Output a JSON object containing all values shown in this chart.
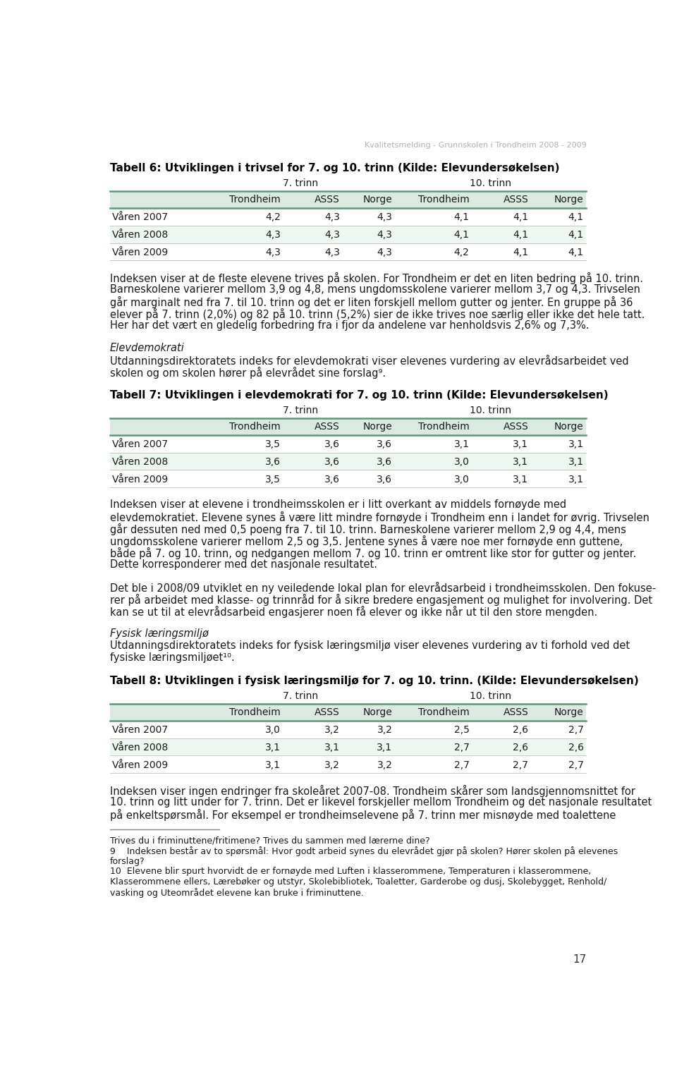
{
  "header": "Kvalitetsmelding - Grunnskolen i Trondheim 2008 - 2009",
  "page_number": "17",
  "bg_color": "#ffffff",
  "table_header_bg": "#daeae3",
  "table_alt_bg": "#eef6f2",
  "table_border_color": "#5a9a78",
  "text_color": "#1a1a1a",
  "tabell6_title": "Tabell 6: Utviklingen i trivsel for 7. og 10. trinn (Kilde: Elevundersøkelsen)",
  "tabell6_rows": [
    [
      "Våren 2007",
      "4,2",
      "4,3",
      "4,3",
      "4,1",
      "4,1",
      "4,1"
    ],
    [
      "Våren 2008",
      "4,3",
      "4,3",
      "4,3",
      "4,1",
      "4,1",
      "4,1"
    ],
    [
      "Våren 2009",
      "4,3",
      "4,3",
      "4,3",
      "4,2",
      "4,1",
      "4,1"
    ]
  ],
  "text1_lines": [
    "Indeksen viser at de fleste elevene trives på skolen. For Trondheim er det en liten bedring på 10. trinn.",
    "Barneskolene varierer mellom 3,9 og 4,8, mens ungdomsskolene varierer mellom 3,7 og 4,3. Trivselen",
    "går marginalt ned fra 7. til 10. trinn og det er liten forskjell mellom gutter og jenter. En gruppe på 36",
    "elever på 7. trinn (2,0%) og 82 på 10. trinn (5,2%) sier de ikke trives noe særlig eller ikke det hele tatt.",
    "Her har det vært en gledelig forbedring fra i fjor da andelene var henholdsvis 2,6% og 7,3%."
  ],
  "section2_title": "Elevdemokrati",
  "text2_lines": [
    "Utdanningsdirektoratets indeks for elevdemokrati viser elevenes vurdering av elevrådsarbeidet ved",
    "skolen og om skolen hører på elevrådet sine forslag⁹."
  ],
  "tabell7_title": "Tabell 7: Utviklingen i elevdemokrati for 7. og 10. trinn (Kilde: Elevundersøkelsen)",
  "tabell7_rows": [
    [
      "Våren 2007",
      "3,5",
      "3,6",
      "3,6",
      "3,1",
      "3,1",
      "3,1"
    ],
    [
      "Våren 2008",
      "3,6",
      "3,6",
      "3,6",
      "3,0",
      "3,1",
      "3,1"
    ],
    [
      "Våren 2009",
      "3,5",
      "3,6",
      "3,6",
      "3,0",
      "3,1",
      "3,1"
    ]
  ],
  "text3_lines": [
    "Indeksen viser at elevene i trondheimsskolen er i litt overkant av middels fornøyde med",
    "elevdemokratiet. Elevene synes å være litt mindre fornøyde i Trondheim enn i landet for øvrig. Trivselen",
    "går dessuten ned med 0,5 poeng fra 7. til 10. trinn. Barneskolene varierer mellom 2,9 og 4,4, mens",
    "ungdomsskolene varierer mellom 2,5 og 3,5. Jentene synes å være noe mer fornøyde enn guttene,",
    "både på 7. og 10. trinn, og nedgangen mellom 7. og 10. trinn er omtrent like stor for gutter og jenter.",
    "Dette korresponderer med det nasjonale resultatet."
  ],
  "text4_lines": [
    "Det ble i 2008/09 utviklet en ny veiledende lokal plan for elevrådsarbeid i trondheimsskolen. Den fokuse-",
    "rer på arbeidet med klasse- og trinnråd for å sikre bredere engasjement og mulighet for involvering. Det",
    "kan se ut til at elevrådsarbeid engasjerer noen få elever og ikke når ut til den store mengden."
  ],
  "section3_title": "Fysisk læringsmiljø",
  "text5_lines": [
    "Utdanningsdirektoratets indeks for fysisk læringsmiljø viser elevenes vurdering av ti forhold ved det",
    "fysiske læringsmiljøet¹⁰."
  ],
  "tabell8_title": "Tabell 8: Utviklingen i fysisk læringsmiljø for 7. og 10. trinn. (Kilde: Elevundersøkelsen)",
  "tabell8_rows": [
    [
      "Våren 2007",
      "3,0",
      "3,2",
      "3,2",
      "2,5",
      "2,6",
      "2,7"
    ],
    [
      "Våren 2008",
      "3,1",
      "3,1",
      "3,1",
      "2,7",
      "2,6",
      "2,6"
    ],
    [
      "Våren 2009",
      "3,1",
      "3,2",
      "3,2",
      "2,7",
      "2,7",
      "2,7"
    ]
  ],
  "text6_lines": [
    "Indeksen viser ingen endringer fra skoleåret 2007-08. Trondheim skårer som landsgjennomsnittet for",
    "10. trinn og litt under for 7. trinn. Det er likevel forskjeller mellom Trondheim og det nasjonale resultatet",
    "på enkeltspørsmål. For eksempel er trondheimselevene på 7. trinn mer misnøyde med toalettene"
  ],
  "fn_line1": "Trives du i friminuttene/fritimene? Trives du sammen med lærerne dine?",
  "fn_line9a": "9    Indeksen består av to spørsmål: Hvor godt arbeid synes du elevrådet gjør på skolen? Hører skolen på elevenes",
  "fn_line9b": "forslag?",
  "fn_line10a": "10  Elevene blir spurt hvorvidt de er fornøyde med Luften i klasserommene, Temperaturen i klasserommene,",
  "fn_line10b": "Klasserommene ellers, Lærebøker og utstyr, Skolebibliotek, Toaletter, Garderobe og dusj, Skolebygget, Renhold/",
  "fn_line10c": "vasking og Uteområdet elevene kan bruke i friminuttene."
}
